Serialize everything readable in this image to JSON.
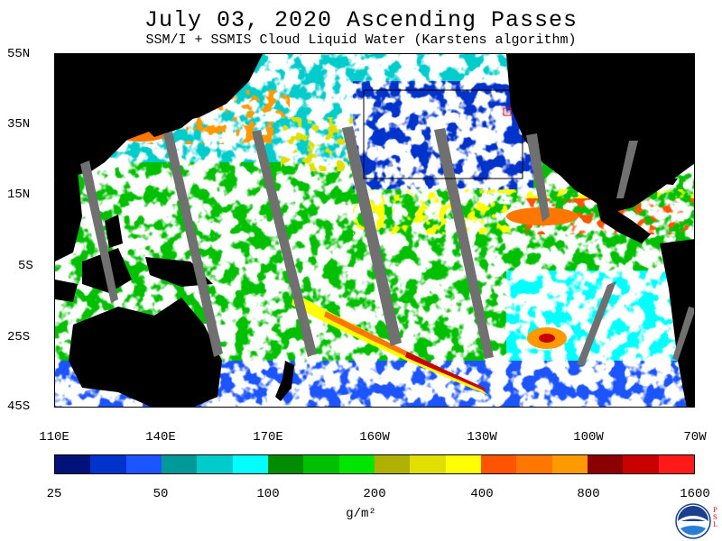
{
  "header": {
    "title": "July 03, 2020  Ascending Passes",
    "subtitle": "SSM/I + SSMIS Cloud Liquid Water (Karstens algorithm)"
  },
  "map": {
    "lat_labels": [
      "55N",
      "35N",
      "15N",
      "5S",
      "25S",
      "45S"
    ],
    "lon_labels": [
      "110E",
      "140E",
      "170E",
      "160W",
      "130W",
      "100W",
      "70W"
    ],
    "land_color": "#000000",
    "no_data_color": "#707070",
    "ocean_clear_color": "#ffffff"
  },
  "colorbar": {
    "colors": [
      "#00127a",
      "#0033cc",
      "#1a55ff",
      "#009999",
      "#00cccc",
      "#00ffff",
      "#008c00",
      "#00c000",
      "#00e600",
      "#b0b000",
      "#e0e000",
      "#ffff00",
      "#ff5500",
      "#ff7700",
      "#ff9900",
      "#8b0000",
      "#c80000",
      "#ff1a1a"
    ],
    "tick_labels": [
      "25",
      "50",
      "100",
      "200",
      "400",
      "800",
      "1600"
    ],
    "units": "g/m²"
  },
  "logo": {
    "name": "NOAA",
    "side_text": "P S L"
  }
}
